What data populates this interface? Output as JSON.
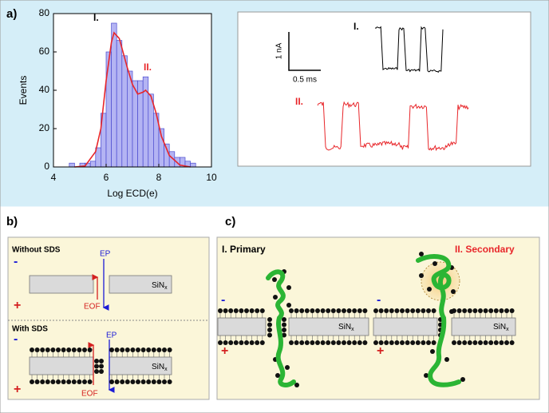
{
  "panel_labels": {
    "a": "a)",
    "b": "b)",
    "c": "c)"
  },
  "chart_data": {
    "type": "histogram",
    "x_label": "Log ECD(e)",
    "y_label": "Events",
    "bins": [
      4.6,
      4.8,
      5.0,
      5.2,
      5.4,
      5.6,
      5.8,
      6.0,
      6.2,
      6.4,
      6.6,
      6.8,
      7.0,
      7.2,
      7.4,
      7.6,
      7.8,
      8.0,
      8.2,
      8.4,
      8.6,
      8.8,
      9.0,
      9.2,
      9.4
    ],
    "counts": [
      2,
      0,
      2,
      2,
      3,
      10,
      28,
      60,
      75,
      66,
      58,
      50,
      45,
      45,
      47,
      38,
      28,
      20,
      12,
      8,
      5,
      5,
      3,
      2
    ],
    "color": "#b4b4f3",
    "edge_color": "#4b4bcf",
    "fit": {
      "x": [
        4.8,
        5.2,
        5.6,
        5.8,
        6.0,
        6.2,
        6.3,
        6.5,
        6.8,
        7.0,
        7.2,
        7.4,
        7.5,
        7.7,
        7.9,
        8.1,
        8.4,
        8.8,
        9.2
      ],
      "values": [
        0,
        0.5,
        8,
        20,
        45,
        65,
        70,
        67,
        52,
        43,
        38,
        39,
        40,
        37,
        28,
        16,
        6,
        1,
        0
      ],
      "color": "#e8262a"
    },
    "annotations": [
      {
        "text": "I.",
        "color": "#000000"
      },
      {
        "text": "II.",
        "color": "#e8262a"
      }
    ],
    "xlim": [
      4,
      10
    ],
    "ylim": [
      0,
      80
    ],
    "xticks": [
      4,
      6,
      8,
      10
    ],
    "yticks": [
      0,
      20,
      40,
      60,
      80
    ]
  },
  "traces": {
    "scale_current": "1 nA",
    "scale_time": "0.5 ms",
    "trace_1": "I.",
    "trace_2": "II."
  },
  "panel_b": {
    "top_title": "Without SDS",
    "bottom_title": "With SDS",
    "minus": "-",
    "plus": "+",
    "ep": "EP",
    "eof": "EOF",
    "material": "SiN",
    "material_sub": "x"
  },
  "panel_c": {
    "primary": "I. Primary",
    "secondary": "II. Secondary"
  }
}
